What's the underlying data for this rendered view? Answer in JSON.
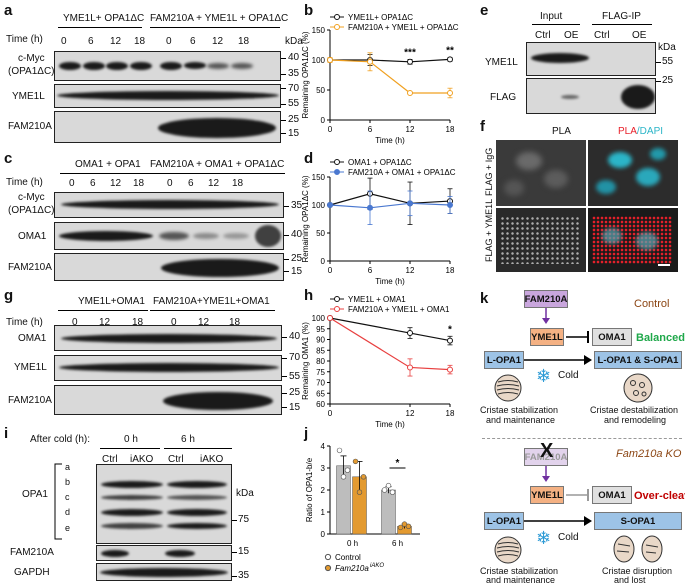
{
  "panels": {
    "a": {
      "label": "a",
      "group1": "YME1L+ OPA1ΔC",
      "group2": "FAM210A + YME1L + OPA1ΔC",
      "time_label": "Time (h)",
      "times": [
        "0",
        "6",
        "12",
        "18",
        "0",
        "6",
        "12",
        "18"
      ],
      "kda": "kDa",
      "rows": [
        {
          "label1": "c-Myc",
          "label2": "(OPA1ΔC)",
          "markers": [
            "40",
            "35"
          ]
        },
        {
          "label1": "YME1L",
          "label2": "",
          "markers": [
            "70",
            "55"
          ]
        },
        {
          "label1": "FAM210A",
          "label2": "",
          "markers": [
            "25",
            "15"
          ]
        }
      ]
    },
    "c": {
      "label": "c",
      "group1": "OMA1 + OPA1",
      "group2": "FAM210A + OMA1 + OPA1ΔC",
      "time_label": "Time (h)",
      "times": [
        "0",
        "6",
        "12",
        "18",
        "0",
        "6",
        "12",
        "18"
      ],
      "rows": [
        {
          "label1": "c-Myc",
          "label2": "(OPA1ΔC)",
          "markers": [
            "35"
          ]
        },
        {
          "label1": "OMA1",
          "label2": "",
          "markers": [
            "40"
          ]
        },
        {
          "label1": "FAM210A",
          "label2": "",
          "markers": [
            "25",
            "15"
          ]
        }
      ]
    },
    "g": {
      "label": "g",
      "group1": "YME1L+OMA1",
      "group2": "FAM210A+YME1L+OMA1",
      "time_label": "Time (h)",
      "times": [
        "0",
        "12",
        "18",
        "0",
        "12",
        "18"
      ],
      "rows": [
        {
          "label1": "OMA1",
          "label2": "",
          "markers": [
            "40"
          ]
        },
        {
          "label1": "YME1L",
          "label2": "",
          "markers": [
            "70",
            "55"
          ]
        },
        {
          "label1": "FAM210A",
          "label2": "",
          "markers": [
            "25",
            "15"
          ]
        }
      ]
    },
    "i": {
      "label": "i",
      "after_cold": "After cold (h):",
      "t0": "0 h",
      "t6": "6 h",
      "lanes": [
        "Ctrl",
        "iAKO",
        "Ctrl",
        "iAKO"
      ],
      "kda": "kDa",
      "letters": [
        "a",
        "b",
        "c",
        "d",
        "e"
      ],
      "rows": [
        {
          "label1": "OPA1",
          "markers": [
            "75"
          ]
        },
        {
          "label1": "FAM210A",
          "markers": [
            "15"
          ]
        },
        {
          "label1": "GAPDH",
          "markers": [
            "35"
          ]
        }
      ]
    },
    "e": {
      "label": "e",
      "input": "Input",
      "flagip": "FLAG-IP",
      "lanes": [
        "Ctrl",
        "OE",
        "Ctrl",
        "OE"
      ],
      "kda": "kDa",
      "rows": [
        {
          "label1": "YME1L",
          "markers": [
            "55"
          ]
        },
        {
          "label1": "FLAG",
          "markers": [
            "25"
          ]
        }
      ]
    },
    "f": {
      "label": "f",
      "col1": "PLA",
      "col2_a": "PLA",
      "col2_b": "/DAPI",
      "row1": "FLAG + IgG",
      "row2": "FLAG + YME1L",
      "pla_color": "#e8202a",
      "dapi_color": "#2bb5c8"
    },
    "k": {
      "label": "k",
      "control": "Control",
      "ko": "Fam210a KO",
      "fam210a": "FAM210A",
      "yme1l": "YME1L",
      "oma1": "OMA1",
      "balanced": "Balanced",
      "over_cleaved": "Over-cleaved",
      "l_opa1": "L-OPA1",
      "ls_opa1": "L-OPA1 & S-OPA1",
      "s_opa1": "S-OPA1",
      "cold": "Cold",
      "cap1a": "Cristae stabilization",
      "cap1b": "and maintenance",
      "cap2a": "Cristae destabilization",
      "cap2b": "and remodeling",
      "cap3a": "Cristae stabilization",
      "cap3b": "and maintenance",
      "cap4a": "Cristae disruption",
      "cap4b": "and lost",
      "x_mark": "X",
      "colors": {
        "fam": "#c9a6dd",
        "yme": "#f4b183",
        "oma": "#e0e0e0",
        "opa": "#9dc3e6",
        "green": "#1fa84a",
        "red": "#c00000",
        "brown": "#8b4513",
        "arrow": "#7030a0"
      }
    }
  },
  "chart_data": [
    {
      "panel": "b",
      "type": "line",
      "xlabel": "Time (h)",
      "ylabel": "Remaining OPA1ΔC (%)",
      "x": [
        0,
        6,
        12,
        18
      ],
      "xlim": [
        0,
        18
      ],
      "ylim": [
        0,
        150
      ],
      "yticks": [
        0,
        50,
        100,
        150
      ],
      "legend": "top",
      "series": [
        {
          "name": "YME1L+ OPA1ΔC",
          "values": [
            100,
            100,
            97,
            101
          ],
          "errors": [
            3,
            9,
            4,
            3
          ],
          "color": "#111111",
          "marker": "circle-open"
        },
        {
          "name": "FAM210A + YME1L + OPA1ΔC",
          "values": [
            100,
            97,
            45,
            45
          ],
          "errors": [
            4,
            15,
            2,
            8
          ],
          "color": "#f0a020",
          "marker": "circle-open"
        }
      ],
      "annotations": [
        {
          "x": 12,
          "text": "***"
        },
        {
          "x": 18,
          "text": "**"
        }
      ]
    },
    {
      "panel": "d",
      "type": "line",
      "xlabel": "Time (h)",
      "ylabel": "Remaining OPA1ΔC (%)",
      "x": [
        0,
        6,
        12,
        18
      ],
      "xlim": [
        0,
        18
      ],
      "ylim": [
        0,
        150
      ],
      "yticks": [
        0,
        50,
        100,
        150
      ],
      "legend": "top",
      "series": [
        {
          "name": "OMA1 + OPA1ΔC",
          "values": [
            100,
            120,
            103,
            107
          ],
          "errors": [
            2,
            28,
            38,
            22
          ],
          "color": "#111111",
          "marker": "circle-open"
        },
        {
          "name": "FAM210A + OMA1 + OPA1ΔC",
          "values": [
            100,
            95,
            103,
            100
          ],
          "errors": [
            3,
            30,
            22,
            15
          ],
          "color": "#4a78d0",
          "marker": "circle-filled"
        }
      ]
    },
    {
      "panel": "h",
      "type": "line",
      "xlabel": "Time (h)",
      "ylabel": "Remaining OMA1 (%)",
      "x": [
        0,
        12,
        18
      ],
      "xlim": [
        0,
        18
      ],
      "ylim": [
        60,
        100
      ],
      "yticks": [
        60,
        65,
        70,
        75,
        80,
        85,
        90,
        95,
        100
      ],
      "legend": "top",
      "series": [
        {
          "name": "YME1L + OMA1",
          "values": [
            100,
            93,
            89.5
          ],
          "errors": [
            0.5,
            2.5,
            2
          ],
          "color": "#111111",
          "marker": "circle-open"
        },
        {
          "name": "FAM210A + YME1L + OMA1",
          "values": [
            100,
            77,
            76
          ],
          "errors": [
            0.5,
            4,
            2
          ],
          "color": "#e84040",
          "marker": "circle-open"
        }
      ],
      "annotations": [
        {
          "x": 18,
          "text": "*"
        }
      ]
    },
    {
      "panel": "j",
      "type": "bar",
      "ylabel": "Ratio of OPA1-b/e",
      "categories": [
        "0 h",
        "6 h"
      ],
      "ylim": [
        0,
        4
      ],
      "yticks": [
        0,
        1,
        2,
        3,
        4
      ],
      "legend": "bottom",
      "series": [
        {
          "name": "Control",
          "values": [
            3.1,
            2.0
          ],
          "errors": [
            0.45,
            0.15
          ],
          "color": "#bdbdbd",
          "points": [
            [
              3.8,
              2.6,
              2.9
            ],
            [
              2.0,
              2.2,
              1.9
            ]
          ]
        },
        {
          "name": "Fam210a",
          "name_sup": "iAKO",
          "values": [
            2.6,
            0.35
          ],
          "errors": [
            0.7,
            0.1
          ],
          "color": "#e39a30",
          "points": [
            [
              3.3,
              1.9,
              2.6
            ],
            [
              0.3,
              0.45,
              0.35
            ]
          ]
        }
      ],
      "annotations": [
        {
          "category": "6 h",
          "text": "*"
        }
      ]
    }
  ]
}
